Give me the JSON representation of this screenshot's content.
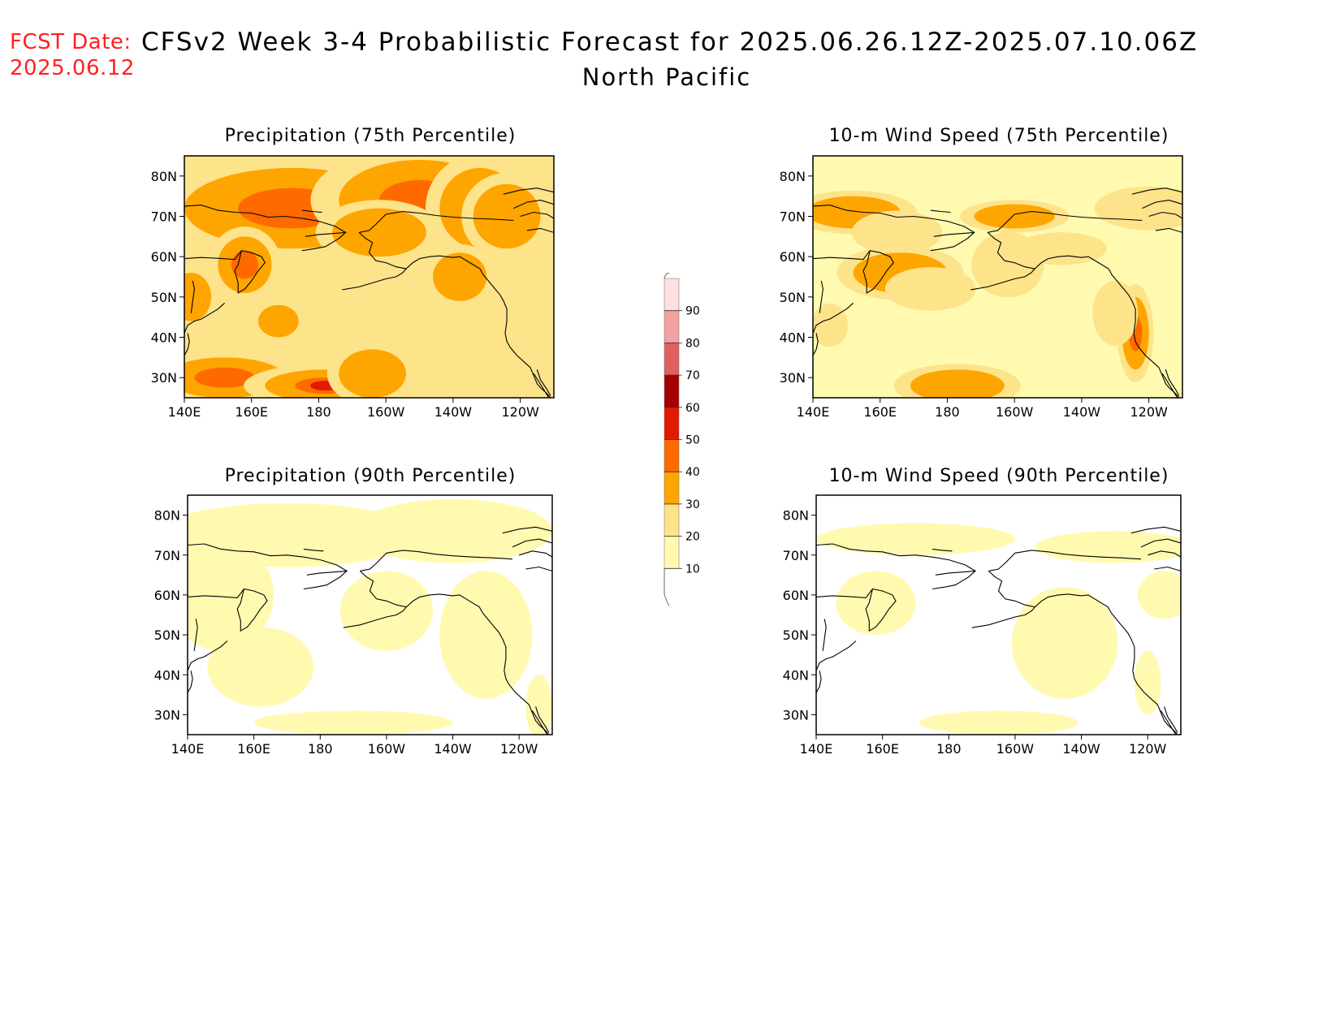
{
  "header": {
    "fcst_label": "FCST Date:",
    "fcst_date": "2025.06.12",
    "title": "CFSv2 Week 3-4 Probabilistic Forecast for 2025.06.26.12Z-2025.07.10.06Z",
    "region": "North Pacific"
  },
  "axes": {
    "lon_labels": [
      "140E",
      "160E",
      "180",
      "160W",
      "140W",
      "120W"
    ],
    "lat_labels": [
      "80N",
      "70N",
      "60N",
      "50N",
      "40N",
      "30N"
    ],
    "lon_range_deg": [
      140,
      250
    ],
    "lat_range_deg": [
      25,
      85
    ]
  },
  "panels": [
    {
      "id": "precip-75",
      "title": "Precipitation (75th Percentile)",
      "intensity": 0.92
    },
    {
      "id": "wind-75",
      "title": "10-m Wind Speed (75th Percentile)",
      "intensity": 0.72
    },
    {
      "id": "precip-90",
      "title": "Precipitation (90th Percentile)",
      "intensity": 0.35
    },
    {
      "id": "wind-90",
      "title": "10-m Wind Speed (90th Percentile)",
      "intensity": 0.28
    }
  ],
  "colorbar": {
    "labels": [
      "10",
      "20",
      "30",
      "40",
      "50",
      "60",
      "70",
      "80",
      "90"
    ],
    "colors": [
      "#fffab0",
      "#fde38a",
      "#fea500",
      "#fe6a00",
      "#e31a00",
      "#a50000",
      "#e06060",
      "#f4a0a0",
      "#ffe0e0"
    ]
  }
}
